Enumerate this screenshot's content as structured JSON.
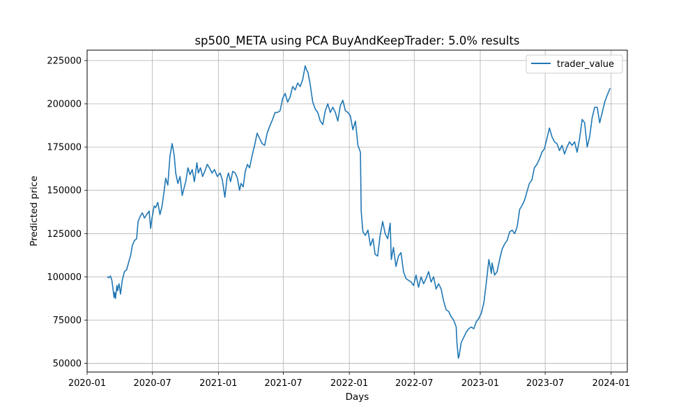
{
  "chart_data": {
    "type": "line",
    "title": "sp500_META using PCA BuyAndKeepTrader: 5.0% results",
    "xlabel": "Days",
    "ylabel": "Predicted price",
    "xlim": [
      "2020-01-01",
      "2024-02-15"
    ],
    "ylim": [
      45000,
      231000
    ],
    "grid": true,
    "legend_position": "top-right",
    "x_ticks": [
      "2020-01",
      "2020-07",
      "2021-01",
      "2021-07",
      "2022-01",
      "2022-07",
      "2023-01",
      "2023-07",
      "2024-01"
    ],
    "y_ticks": [
      50000,
      75000,
      100000,
      125000,
      150000,
      175000,
      200000,
      225000
    ],
    "series": [
      {
        "name": "trader_value",
        "color": "#1f77b4",
        "x": [
          "2020-02-26",
          "2020-03-02",
          "2020-03-06",
          "2020-03-10",
          "2020-03-12",
          "2020-03-16",
          "2020-03-18",
          "2020-03-20",
          "2020-03-24",
          "2020-03-26",
          "2020-03-30",
          "2020-04-03",
          "2020-04-08",
          "2020-04-14",
          "2020-04-20",
          "2020-04-28",
          "2020-05-01",
          "2020-05-06",
          "2020-05-12",
          "2020-05-18",
          "2020-05-22",
          "2020-05-28",
          "2020-06-03",
          "2020-06-09",
          "2020-06-15",
          "2020-06-22",
          "2020-06-26",
          "2020-06-30",
          "2020-07-06",
          "2020-07-10",
          "2020-07-16",
          "2020-07-22",
          "2020-07-28",
          "2020-08-03",
          "2020-08-07",
          "2020-08-13",
          "2020-08-19",
          "2020-08-25",
          "2020-08-31",
          "2020-09-04",
          "2020-09-10",
          "2020-09-16",
          "2020-09-22",
          "2020-09-28",
          "2020-10-02",
          "2020-10-08",
          "2020-10-14",
          "2020-10-20",
          "2020-10-26",
          "2020-11-02",
          "2020-11-06",
          "2020-11-12",
          "2020-11-18",
          "2020-11-24",
          "2020-12-01",
          "2020-12-07",
          "2020-12-14",
          "2020-12-21",
          "2020-12-29",
          "2021-01-06",
          "2021-01-12",
          "2021-01-19",
          "2021-01-25",
          "2021-01-29",
          "2021-02-04",
          "2021-02-10",
          "2021-02-17",
          "2021-02-23",
          "2021-03-01",
          "2021-03-05",
          "2021-03-11",
          "2021-03-17",
          "2021-03-23",
          "2021-03-29",
          "2021-04-05",
          "2021-04-12",
          "2021-04-19",
          "2021-04-26",
          "2021-05-03",
          "2021-05-10",
          "2021-05-17",
          "2021-05-24",
          "2021-06-01",
          "2021-06-08",
          "2021-06-15",
          "2021-06-22",
          "2021-06-29",
          "2021-07-06",
          "2021-07-13",
          "2021-07-20",
          "2021-07-27",
          "2021-08-03",
          "2021-08-10",
          "2021-08-17",
          "2021-08-24",
          "2021-08-31",
          "2021-09-03",
          "2021-09-08",
          "2021-09-14",
          "2021-09-21",
          "2021-09-28",
          "2021-10-05",
          "2021-10-12",
          "2021-10-19",
          "2021-10-26",
          "2021-11-02",
          "2021-11-09",
          "2021-11-16",
          "2021-11-23",
          "2021-11-30",
          "2021-12-07",
          "2021-12-14",
          "2021-12-21",
          "2021-12-28",
          "2022-01-04",
          "2022-01-11",
          "2022-01-18",
          "2022-01-25",
          "2022-02-01",
          "2022-02-03",
          "2022-02-08",
          "2022-02-15",
          "2022-02-22",
          "2022-03-01",
          "2022-03-08",
          "2022-03-14",
          "2022-03-21",
          "2022-03-28",
          "2022-04-04",
          "2022-04-11",
          "2022-04-18",
          "2022-04-25",
          "2022-04-28",
          "2022-05-04",
          "2022-05-11",
          "2022-05-18",
          "2022-05-25",
          "2022-06-01",
          "2022-06-08",
          "2022-06-15",
          "2022-06-22",
          "2022-06-29",
          "2022-07-06",
          "2022-07-13",
          "2022-07-20",
          "2022-07-27",
          "2022-08-03",
          "2022-08-10",
          "2022-08-17",
          "2022-08-24",
          "2022-08-31",
          "2022-09-07",
          "2022-09-14",
          "2022-09-21",
          "2022-09-28",
          "2022-10-05",
          "2022-10-12",
          "2022-10-19",
          "2022-10-26",
          "2022-10-28",
          "2022-11-01",
          "2022-11-03",
          "2022-11-09",
          "2022-11-16",
          "2022-11-23",
          "2022-11-30",
          "2022-12-07",
          "2022-12-14",
          "2022-12-21",
          "2022-12-28",
          "2023-01-04",
          "2023-01-11",
          "2023-01-18",
          "2023-01-25",
          "2023-02-01",
          "2023-02-03",
          "2023-02-10",
          "2023-02-17",
          "2023-02-24",
          "2023-03-03",
          "2023-03-10",
          "2023-03-17",
          "2023-03-24",
          "2023-03-31",
          "2023-04-07",
          "2023-04-14",
          "2023-04-21",
          "2023-04-27",
          "2023-05-04",
          "2023-05-11",
          "2023-05-18",
          "2023-05-25",
          "2023-06-01",
          "2023-06-08",
          "2023-06-15",
          "2023-06-22",
          "2023-06-29",
          "2023-07-06",
          "2023-07-13",
          "2023-07-20",
          "2023-07-27",
          "2023-08-03",
          "2023-08-10",
          "2023-08-17",
          "2023-08-24",
          "2023-08-31",
          "2023-09-07",
          "2023-09-14",
          "2023-09-21",
          "2023-09-28",
          "2023-10-05",
          "2023-10-12",
          "2023-10-19",
          "2023-10-26",
          "2023-11-02",
          "2023-11-09",
          "2023-11-16",
          "2023-11-23",
          "2023-11-30",
          "2023-12-07",
          "2023-12-14",
          "2023-12-21",
          "2023-12-29"
        ],
        "y": [
          100000,
          99500,
          100500,
          98000,
          95000,
          88000,
          91000,
          87500,
          95000,
          92000,
          96000,
          90000,
          98000,
          103000,
          104000,
          110000,
          112000,
          118000,
          121000,
          122000,
          132000,
          135000,
          137000,
          134000,
          136000,
          138000,
          128000,
          134000,
          141000,
          140000,
          143000,
          136000,
          141000,
          150000,
          157000,
          153000,
          170000,
          177000,
          170000,
          160000,
          154000,
          158000,
          147000,
          152000,
          155000,
          163000,
          159000,
          162000,
          155000,
          166000,
          160000,
          163000,
          158000,
          161000,
          165000,
          163000,
          160000,
          162000,
          158000,
          160000,
          156000,
          146000,
          157000,
          160000,
          155000,
          161000,
          160000,
          157000,
          150000,
          154000,
          152000,
          161000,
          165000,
          163000,
          170000,
          176000,
          183000,
          180000,
          177000,
          176000,
          183000,
          187000,
          191000,
          195000,
          195000,
          196000,
          203000,
          206000,
          201000,
          204000,
          210000,
          208000,
          212000,
          210000,
          214000,
          222000,
          220000,
          218000,
          211000,
          201000,
          197000,
          195000,
          190000,
          188000,
          196000,
          200000,
          195000,
          198000,
          195000,
          190000,
          199000,
          202000,
          196000,
          195000,
          193000,
          185000,
          190000,
          176000,
          172000,
          138000,
          126000,
          124000,
          127000,
          118000,
          122000,
          113000,
          112000,
          124000,
          132000,
          125000,
          122000,
          131000,
          110000,
          117000,
          106000,
          112000,
          114000,
          103000,
          99000,
          98000,
          97000,
          95000,
          101000,
          94000,
          100000,
          96000,
          99000,
          103000,
          97000,
          100000,
          93000,
          96000,
          93000,
          86000,
          81000,
          80000,
          77000,
          75000,
          71000,
          62000,
          53000,
          54000,
          62000,
          65000,
          68000,
          70000,
          71000,
          70000,
          74000,
          76000,
          79000,
          85000,
          97000,
          110000,
          102000,
          108000,
          101000,
          103000,
          110000,
          116000,
          119000,
          121000,
          126000,
          127000,
          125000,
          129000,
          139000,
          141000,
          144000,
          149000,
          154000,
          156000,
          163000,
          165000,
          168000,
          172000,
          174000,
          180000,
          186000,
          181000,
          178000,
          177000,
          173000,
          176000,
          171000,
          175000,
          178000,
          176000,
          178000,
          172000,
          180000,
          191000,
          189000,
          175000,
          181000,
          192000,
          198000,
          198000,
          189000,
          195000,
          201000,
          205000,
          209000
        ]
      }
    ]
  }
}
